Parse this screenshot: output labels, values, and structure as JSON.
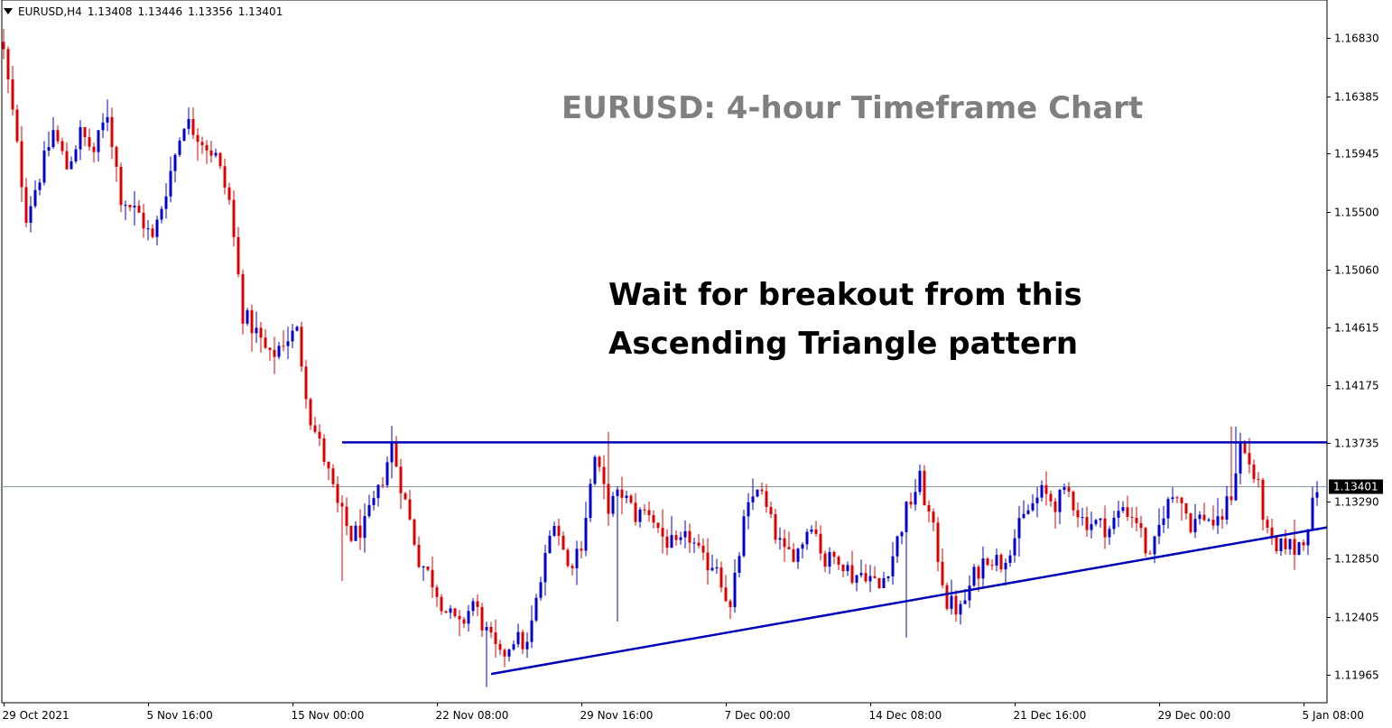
{
  "header": {
    "symbol": "EURUSD,H4",
    "open": "1.13408",
    "high": "1.13446",
    "low": "1.13356",
    "close": "1.13401"
  },
  "annotation": {
    "line1": "Wait for breakout from this",
    "line2": "Ascending Triangle pattern"
  },
  "chart_data": {
    "type": "candlestick",
    "title": "EURUSD: 4-hour Timeframe Chart",
    "y_ticks": [
      "1.16830",
      "1.16385",
      "1.15945",
      "1.15500",
      "1.15060",
      "1.14615",
      "1.14175",
      "1.13735",
      "1.13290",
      "1.12850",
      "1.12405",
      "1.11965"
    ],
    "y_tick_values": [
      1.1683,
      1.16385,
      1.15945,
      1.155,
      1.1506,
      1.14615,
      1.14175,
      1.13735,
      1.1329,
      1.1285,
      1.12405,
      1.11965
    ],
    "ylim": [
      1.1175,
      1.1712
    ],
    "x_ticks": [
      "29 Oct 2021",
      "5 Nov 16:00",
      "15 Nov 00:00",
      "22 Nov 08:00",
      "29 Nov 16:00",
      "7 Dec 00:00",
      "14 Dec 08:00",
      "21 Dec 16:00",
      "29 Dec 00:00",
      "5 Jan 08:00"
    ],
    "x_tick_bar_index": [
      0,
      32,
      64,
      96,
      128,
      160,
      192,
      224,
      256,
      288
    ],
    "current_price": "1.13401",
    "current_price_value": 1.13401,
    "bullish_color": "#0000cc",
    "bearish_color": "#dd0000",
    "resistance_line": {
      "from": [
        75,
        1.1374
      ],
      "to": [
        366,
        1.1374
      ],
      "color": "#0000b8"
    },
    "support_line": {
      "from": [
        108,
        1.1197
      ],
      "to": [
        366,
        1.1309
      ],
      "color": "#0000b8"
    },
    "close_anchors": [
      [
        0,
        1.1672
      ],
      [
        2,
        1.1625
      ],
      [
        5,
        1.1548
      ],
      [
        8,
        1.1578
      ],
      [
        11,
        1.1612
      ],
      [
        14,
        1.1584
      ],
      [
        17,
        1.161
      ],
      [
        20,
        1.1596
      ],
      [
        23,
        1.1626
      ],
      [
        26,
        1.1562
      ],
      [
        30,
        1.1548
      ],
      [
        33,
        1.1528
      ],
      [
        36,
        1.1568
      ],
      [
        40,
        1.162
      ],
      [
        43,
        1.161
      ],
      [
        47,
        1.1592
      ],
      [
        50,
        1.1558
      ],
      [
        53,
        1.1472
      ],
      [
        56,
        1.1458
      ],
      [
        59,
        1.1438
      ],
      [
        62,
        1.1452
      ],
      [
        65,
        1.1458
      ],
      [
        68,
        1.1392
      ],
      [
        71,
        1.1362
      ],
      [
        74,
        1.1325
      ],
      [
        77,
        1.1302
      ],
      [
        80,
        1.131
      ],
      [
        83,
        1.1335
      ],
      [
        86,
        1.1372
      ],
      [
        89,
        1.1328
      ],
      [
        92,
        1.1285
      ],
      [
        95,
        1.1268
      ],
      [
        98,
        1.1245
      ],
      [
        101,
        1.1232
      ],
      [
        104,
        1.1252
      ],
      [
        107,
        1.1228
      ],
      [
        110,
        1.1208
      ],
      [
        113,
        1.1225
      ],
      [
        116,
        1.1218
      ],
      [
        119,
        1.1268
      ],
      [
        122,
        1.1318
      ],
      [
        125,
        1.1278
      ],
      [
        128,
        1.1298
      ],
      [
        131,
        1.1362
      ],
      [
        134,
        1.1325
      ],
      [
        137,
        1.1335
      ],
      [
        140,
        1.1318
      ],
      [
        143,
        1.1322
      ],
      [
        146,
        1.1302
      ],
      [
        149,
        1.1292
      ],
      [
        152,
        1.1302
      ],
      [
        155,
        1.1282
      ],
      [
        158,
        1.1282
      ],
      [
        161,
        1.1245
      ],
      [
        164,
        1.1312
      ],
      [
        167,
        1.1342
      ],
      [
        170,
        1.1312
      ],
      [
        173,
        1.1288
      ],
      [
        176,
        1.1292
      ],
      [
        179,
        1.1315
      ],
      [
        182,
        1.1282
      ],
      [
        185,
        1.1288
      ],
      [
        188,
        1.1272
      ],
      [
        191,
        1.1275
      ],
      [
        194,
        1.1262
      ],
      [
        197,
        1.1288
      ],
      [
        200,
        1.1322
      ],
      [
        203,
        1.1345
      ],
      [
        206,
        1.1305
      ],
      [
        209,
        1.1252
      ],
      [
        212,
        1.1245
      ],
      [
        215,
        1.1272
      ],
      [
        218,
        1.1288
      ],
      [
        221,
        1.1282
      ],
      [
        224,
        1.1302
      ],
      [
        227,
        1.1322
      ],
      [
        230,
        1.1335
      ],
      [
        233,
        1.1328
      ],
      [
        236,
        1.1335
      ],
      [
        239,
        1.1315
      ],
      [
        242,
        1.1312
      ],
      [
        245,
        1.1308
      ],
      [
        248,
        1.1325
      ],
      [
        251,
        1.1315
      ],
      [
        254,
        1.1282
      ],
      [
        257,
        1.1322
      ],
      [
        260,
        1.1338
      ],
      [
        263,
        1.1312
      ],
      [
        266,
        1.1318
      ],
      [
        269,
        1.131
      ],
      [
        272,
        1.1335
      ],
      [
        274,
        1.1372
      ],
      [
        276,
        1.1358
      ],
      [
        278,
        1.1338
      ],
      [
        280,
        1.1302
      ],
      [
        282,
        1.1288
      ],
      [
        284,
        1.1298
      ],
      [
        286,
        1.1292
      ],
      [
        288,
        1.1302
      ],
      [
        290,
        1.1325
      ],
      [
        291,
        1.134
      ]
    ]
  }
}
